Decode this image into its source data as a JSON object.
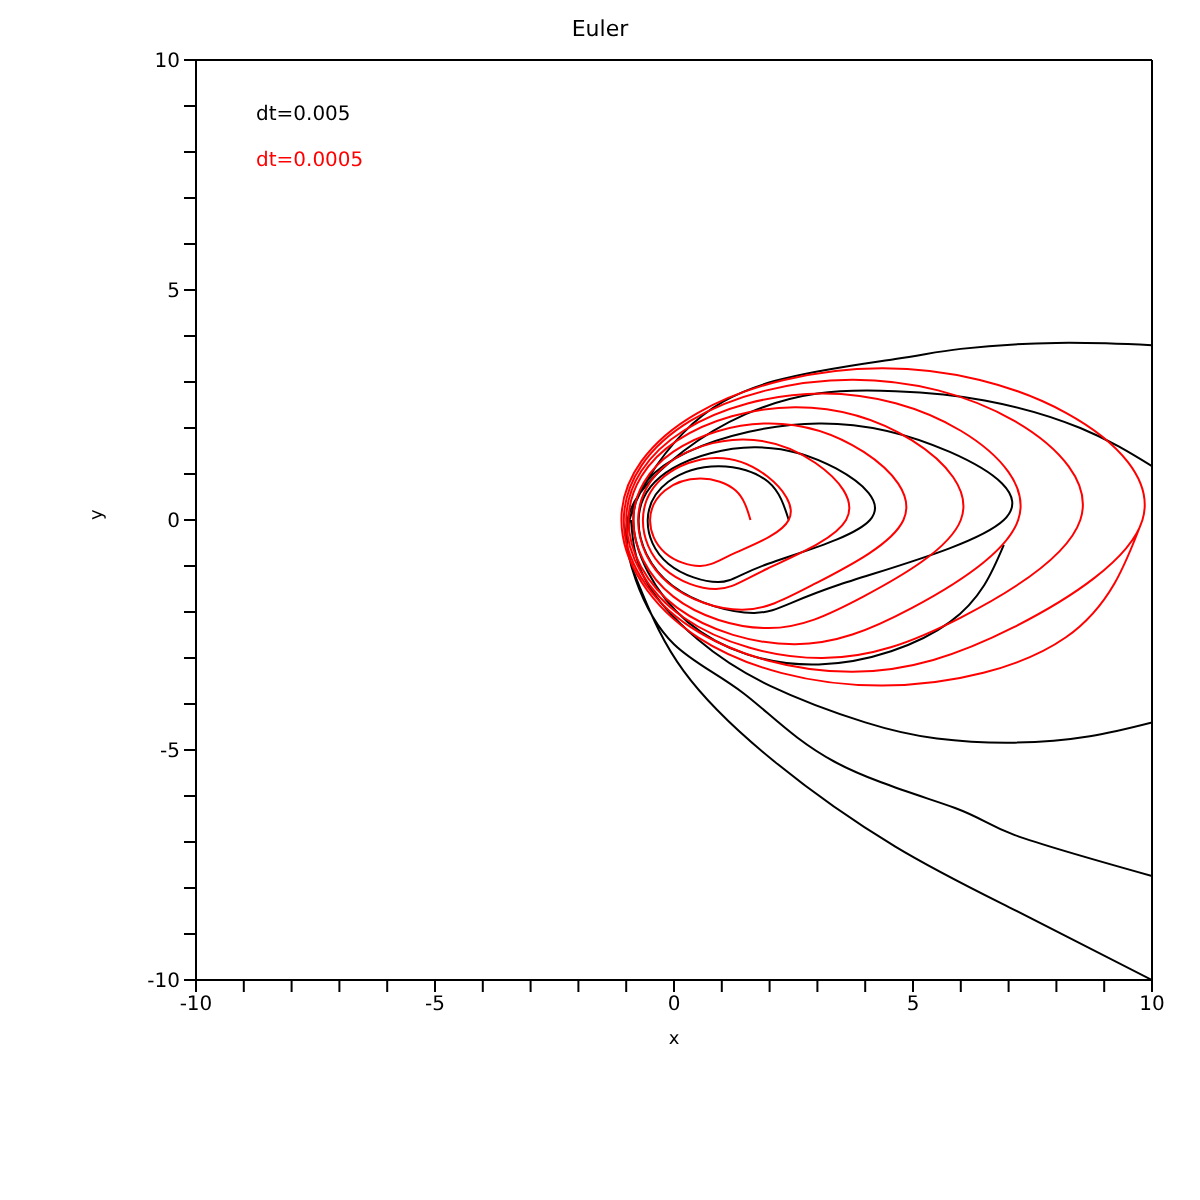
{
  "chart_data": {
    "type": "line",
    "title": "Euler",
    "xlabel": "x",
    "ylabel": "y",
    "marker": "none",
    "line_style": "solid",
    "legend": "top left",
    "xlim": [
      -10,
      10
    ],
    "ylim": [
      -10,
      10
    ],
    "xticks": [
      -10,
      {
        "value": -9,
        "label": null
      },
      {
        "value": -8,
        "label": null
      },
      {
        "value": -7,
        "label": null
      },
      {
        "value": -6,
        "label": null
      },
      -5,
      {
        "value": -4,
        "label": null
      },
      {
        "value": -3,
        "label": null
      },
      {
        "value": -2,
        "label": null
      },
      {
        "value": -1,
        "label": null
      },
      0,
      {
        "value": 1,
        "label": null
      },
      {
        "value": 2,
        "label": null
      },
      {
        "value": 3,
        "label": null
      },
      {
        "value": 4,
        "label": null
      },
      5,
      {
        "value": 6,
        "label": null
      },
      {
        "value": 7,
        "label": null
      },
      {
        "value": 8,
        "label": null
      },
      {
        "value": 9,
        "label": null
      },
      10
    ],
    "yticks": [
      -10,
      {
        "value": -9,
        "label": null
      },
      {
        "value": -8,
        "label": null
      },
      {
        "value": -7,
        "label": null
      },
      {
        "value": -6,
        "label": null
      },
      -5,
      {
        "value": -4,
        "label": null
      },
      {
        "value": -3,
        "label": null
      },
      {
        "value": -2,
        "label": null
      },
      {
        "value": -1,
        "label": null
      },
      0,
      {
        "value": 1,
        "label": null
      },
      {
        "value": 2,
        "label": null
      },
      {
        "value": 3,
        "label": null
      },
      {
        "value": 4,
        "label": null
      },
      5,
      {
        "value": 6,
        "label": null
      },
      {
        "value": 7,
        "label": null
      },
      {
        "value": 8,
        "label": null
      },
      {
        "value": 9,
        "label": null
      },
      10
    ],
    "series": [
      {
        "name": "dt=0.005",
        "color": "#000000",
        "x": [
          2.4,
          1.97,
          0.93,
          -0.12,
          -0.55,
          -0.12,
          0.93,
          1.97,
          4.1,
          3.39,
          1.68,
          -0.03,
          -0.74,
          -0.03,
          1.68,
          3.39,
          6.9,
          5.77,
          3.03,
          0.29,
          -0.85,
          0.29,
          3.03,
          5.77,
          6.9,
          null,
          -0.9,
          -0.6,
          0.5,
          2.0,
          4.0,
          5.5,
          7.13,
          8.7,
          10,
          null,
          10,
          8.5,
          6.5,
          4.63,
          3.0,
          1.5,
          0.2,
          -0.7,
          -1.0,
          -0.8,
          0,
          1.46,
          3.35,
          5.88,
          7.13,
          10,
          null,
          10,
          8,
          6,
          4.63,
          2.1,
          0.2,
          -0.93,
          -0.7,
          0.2,
          2.1,
          4.63,
          7.13,
          10
        ],
        "values": [
          0,
          0.83,
          1.17,
          0.83,
          0,
          -0.95,
          -1.35,
          -0.95,
          0,
          1.12,
          1.58,
          1.12,
          0,
          -1.43,
          -2.02,
          -1.43,
          0,
          1.48,
          2.1,
          1.48,
          0,
          -2.22,
          -3.14,
          -2.22,
          -0.54,
          null,
          0,
          -1.3,
          -2.6,
          -3.6,
          -4.4,
          -4.75,
          -4.84,
          -4.7,
          -4.4,
          null,
          1.17,
          2.0,
          2.6,
          2.8,
          2.75,
          2.3,
          1.5,
          0.6,
          -0.2,
          -1.3,
          -2.7,
          -3.77,
          -5.25,
          -6.26,
          -6.85,
          -7.74,
          null,
          3.8,
          3.85,
          3.72,
          3.5,
          3.02,
          1.9,
          0,
          -1.5,
          -3.28,
          -5.25,
          -7.1,
          -8.48,
          -10
        ]
      },
      {
        "name": "dt=0.0005",
        "color": "#ff0000",
        "x": [
          1.6,
          1.29,
          0.55,
          -0.19,
          -0.5,
          -0.19,
          0.55,
          1.29,
          2.4,
          1.95,
          0.88,
          -0.2,
          -0.65,
          -0.2,
          0.88,
          1.95,
          3.6,
          2.96,
          1.43,
          -0.11,
          -0.75,
          -0.11,
          1.43,
          2.96,
          4.8,
          3.97,
          1.98,
          -0.02,
          -0.85,
          -0.02,
          1.98,
          3.97,
          6.0,
          4.98,
          2.53,
          0.07,
          -0.95,
          0.07,
          2.53,
          4.98,
          7.2,
          6.0,
          3.1,
          0.2,
          -1.0,
          0.2,
          3.1,
          6.0,
          8.5,
          7.11,
          3.73,
          0.35,
          -1.05,
          0.35,
          3.73,
          7.11,
          9.8,
          8.2,
          4.35,
          0.5,
          -1.1,
          0.5,
          4.35,
          8.2,
          9.8
        ],
        "values": [
          0,
          0.64,
          0.9,
          0.64,
          0,
          -0.71,
          -1.0,
          -0.71,
          0,
          0.95,
          1.35,
          0.95,
          0,
          -1.06,
          -1.5,
          -1.06,
          0,
          1.24,
          1.75,
          1.24,
          0,
          -1.38,
          -1.95,
          -1.38,
          0,
          1.48,
          2.1,
          1.48,
          0,
          -1.66,
          -2.35,
          -1.66,
          0,
          1.73,
          2.45,
          1.73,
          0,
          -1.91,
          -2.7,
          -1.91,
          0,
          1.94,
          2.75,
          1.94,
          0,
          -2.12,
          -3.0,
          -2.12,
          0,
          2.16,
          3.05,
          2.16,
          0,
          -2.33,
          -3.3,
          -2.33,
          0,
          2.33,
          3.3,
          2.33,
          0,
          -2.55,
          -3.6,
          -2.55,
          0
        ]
      }
    ]
  }
}
